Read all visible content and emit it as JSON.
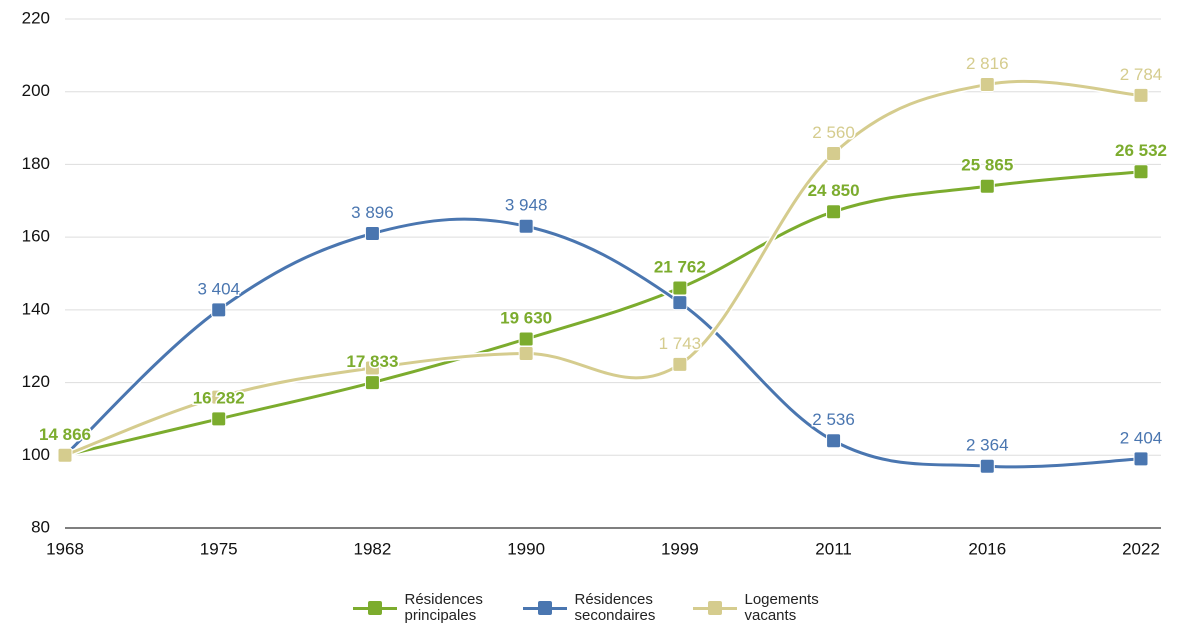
{
  "chart_data": {
    "type": "line",
    "categories": [
      "1968",
      "1975",
      "1982",
      "1990",
      "1999",
      "2011",
      "2016",
      "2022"
    ],
    "series": [
      {
        "name": "Résidences principales",
        "color": "#7cac2e",
        "values": [
          100,
          110,
          120,
          132,
          146,
          167,
          174,
          178
        ],
        "point_labels": [
          "14 866",
          "16 282",
          "17 833",
          "19 630",
          "21 762",
          "24 850",
          "25 865",
          "26 532"
        ]
      },
      {
        "name": "Résidences secondaires",
        "color": "#4a76b0",
        "values": [
          100,
          140,
          161,
          163,
          142,
          104,
          97,
          99
        ],
        "point_labels": [
          null,
          "3 404",
          "3 896",
          "3 948",
          null,
          "2 536",
          "2 364",
          "2 404"
        ]
      },
      {
        "name": "Logements vacants",
        "color": "#d5cc8e",
        "values": [
          100,
          116,
          124,
          128,
          125,
          183,
          202,
          199
        ],
        "point_labels": [
          null,
          null,
          null,
          null,
          "1 743",
          "2 560",
          "2 816",
          "2 784"
        ]
      }
    ],
    "ylim": [
      80,
      220
    ],
    "yticks": [
      80,
      100,
      120,
      140,
      160,
      180,
      200,
      220
    ],
    "grid": true
  }
}
